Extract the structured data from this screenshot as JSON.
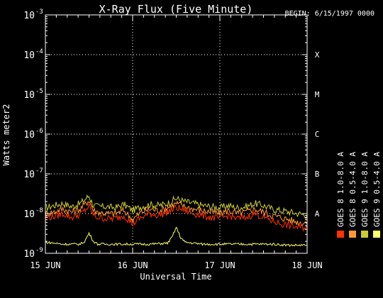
{
  "chart_data": {
    "type": "line",
    "title": "X-Ray Flux (Five Minute)",
    "begin_label": "BEGIN: 6/15/1997 0000",
    "xlabel": "Universal Time",
    "ylabel": "Watts meter2",
    "x_ticks": [
      "15 JUN",
      "16 JUN",
      "17 JUN",
      "18 JUN"
    ],
    "x_range_days": [
      15,
      18
    ],
    "y_scale": "log",
    "y_ticks": [
      {
        "mant": "10",
        "exp": "-9",
        "value": 1e-09
      },
      {
        "mant": "10",
        "exp": "-8",
        "value": 1e-08
      },
      {
        "mant": "10",
        "exp": "-7",
        "value": 1e-07
      },
      {
        "mant": "10",
        "exp": "-6",
        "value": 1e-06
      },
      {
        "mant": "10",
        "exp": "-5",
        "value": 1e-05
      },
      {
        "mant": "10",
        "exp": "-4",
        "value": 0.0001
      },
      {
        "mant": "10",
        "exp": "-3",
        "value": 0.001
      }
    ],
    "ylim": [
      1e-09,
      0.001
    ],
    "flare_classes": [
      {
        "label": "A",
        "value": 1e-08
      },
      {
        "label": "B",
        "value": 1e-07
      },
      {
        "label": "C",
        "value": 1e-06
      },
      {
        "label": "M",
        "value": 1e-05
      },
      {
        "label": "X",
        "value": 0.0001
      }
    ],
    "grid": true,
    "legend": [
      {
        "name": "GOES 8  1.0-8.0 A",
        "color": "#ff3300"
      },
      {
        "name": "GOES 8  0.5-4.0 A",
        "color": "#ff9933"
      },
      {
        "name": "GOES 9  1.0-8.0 A",
        "color": "#cccc33"
      },
      {
        "name": "GOES 9  0.5-4.0 A",
        "color": "#ffff66"
      }
    ],
    "series": [
      {
        "name": "GOES 9  1.0-8.0 A",
        "color": "#cccc33",
        "x": [
          15.0,
          15.1,
          15.2,
          15.3,
          15.4,
          15.5,
          15.55,
          15.6,
          15.7,
          15.8,
          15.9,
          16.0,
          16.1,
          16.2,
          16.3,
          16.4,
          16.5,
          16.6,
          16.7,
          16.8,
          16.9,
          17.0,
          17.1,
          17.2,
          17.3,
          17.4,
          17.5,
          17.6,
          17.7,
          17.8,
          17.9,
          18.0
        ],
        "values": [
          1.4e-08,
          1.6e-08,
          1.8e-08,
          1.5e-08,
          1.8e-08,
          2.8e-08,
          1.6e-08,
          1.5e-08,
          1.5e-08,
          1.4e-08,
          1.7e-08,
          1.2e-08,
          1.5e-08,
          1.7e-08,
          1.6e-08,
          1.8e-08,
          2.4e-08,
          2e-08,
          1.8e-08,
          1.6e-08,
          1.5e-08,
          1.4e-08,
          1.6e-08,
          1.4e-08,
          1.5e-08,
          1.8e-08,
          1.6e-08,
          1.3e-08,
          1.2e-08,
          1.1e-08,
          1e-08,
          9e-09
        ]
      },
      {
        "name": "GOES 8  0.5-4.0 A",
        "color": "#ff9933",
        "x": [
          15.0,
          15.1,
          15.2,
          15.3,
          15.4,
          15.5,
          15.55,
          15.6,
          15.7,
          15.8,
          15.9,
          16.0,
          16.1,
          16.2,
          16.3,
          16.4,
          16.5,
          16.6,
          16.7,
          16.8,
          16.9,
          17.0,
          17.1,
          17.2,
          17.3,
          17.4,
          17.5,
          17.6,
          17.7,
          17.8,
          17.9,
          18.0
        ],
        "values": [
          1e-08,
          1.1e-08,
          1.3e-08,
          1.1e-08,
          1.3e-08,
          2.2e-08,
          1.2e-08,
          1.1e-08,
          1e-08,
          1e-08,
          1.2e-08,
          7e-09,
          1.1e-08,
          1.3e-08,
          1.2e-08,
          1.4e-08,
          1.8e-08,
          1.5e-08,
          1.3e-08,
          1.2e-08,
          1.1e-08,
          1e-08,
          1.2e-08,
          1e-08,
          1.1e-08,
          1.3e-08,
          1.1e-08,
          9e-09,
          8e-09,
          7e-09,
          6e-09,
          6e-09
        ]
      },
      {
        "name": "GOES 8  1.0-8.0 A",
        "color": "#ff3300",
        "x": [
          15.0,
          15.1,
          15.2,
          15.3,
          15.4,
          15.5,
          15.55,
          15.6,
          15.7,
          15.8,
          15.9,
          16.0,
          16.1,
          16.2,
          16.3,
          16.4,
          16.5,
          16.6,
          16.7,
          16.8,
          16.9,
          17.0,
          17.1,
          17.2,
          17.3,
          17.4,
          17.5,
          17.6,
          17.7,
          17.8,
          17.9,
          18.0
        ],
        "values": [
          8e-09,
          8.5e-09,
          1e-08,
          8e-09,
          9.5e-09,
          1.5e-08,
          9e-09,
          8e-09,
          7.5e-09,
          7.5e-09,
          9e-09,
          5.5e-09,
          8e-09,
          1e-08,
          9e-09,
          1.1e-08,
          1.4e-08,
          1.2e-08,
          1e-08,
          9e-09,
          8e-09,
          7.5e-09,
          9e-09,
          7.5e-09,
          8e-09,
          1e-08,
          8e-09,
          6.5e-09,
          5.5e-09,
          5e-09,
          4.5e-09,
          4.5e-09
        ]
      },
      {
        "name": "GOES 9  0.5-4.0 A",
        "color": "#ffff66",
        "x": [
          15.0,
          15.2,
          15.4,
          15.45,
          15.5,
          15.55,
          15.6,
          15.8,
          16.0,
          16.2,
          16.4,
          16.45,
          16.5,
          16.55,
          16.6,
          16.8,
          17.0,
          17.2,
          17.4,
          17.6,
          17.8,
          18.0
        ],
        "values": [
          1.9e-09,
          1.7e-09,
          1.7e-09,
          2e-09,
          3.2e-09,
          2e-09,
          1.7e-09,
          1.7e-09,
          1.7e-09,
          1.7e-09,
          1.8e-09,
          2.5e-09,
          4.5e-09,
          2.5e-09,
          1.9e-09,
          1.7e-09,
          1.7e-09,
          1.7e-09,
          1.7e-09,
          1.7e-09,
          1.6e-09,
          1.6e-09
        ]
      }
    ]
  }
}
